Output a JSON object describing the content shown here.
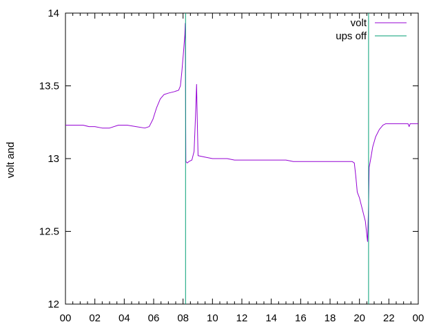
{
  "chart_data": {
    "type": "line",
    "title": "",
    "xlabel": "",
    "ylabel": "volt and",
    "xlim": [
      0,
      24
    ],
    "ylim": [
      12,
      14
    ],
    "x_ticks": [
      "00",
      "02",
      "04",
      "06",
      "08",
      "10",
      "12",
      "14",
      "16",
      "18",
      "20",
      "22",
      "00"
    ],
    "x_tick_values": [
      0,
      2,
      4,
      6,
      8,
      10,
      12,
      14,
      16,
      18,
      20,
      22,
      24
    ],
    "y_ticks": [
      "12",
      "12.5",
      "13",
      "13.5",
      "14"
    ],
    "y_tick_values": [
      12,
      12.5,
      13,
      13.5,
      14
    ],
    "grid": false,
    "legend_position": "top-right",
    "series": [
      {
        "name": "volt",
        "color": "#9400d3",
        "points": [
          [
            0.0,
            13.23
          ],
          [
            0.6,
            13.23
          ],
          [
            1.2,
            13.23
          ],
          [
            1.6,
            13.22
          ],
          [
            2.0,
            13.22
          ],
          [
            2.5,
            13.21
          ],
          [
            3.0,
            13.21
          ],
          [
            3.6,
            13.23
          ],
          [
            4.2,
            13.23
          ],
          [
            4.8,
            13.22
          ],
          [
            5.4,
            13.21
          ],
          [
            5.7,
            13.22
          ],
          [
            5.95,
            13.27
          ],
          [
            6.2,
            13.35
          ],
          [
            6.45,
            13.41
          ],
          [
            6.7,
            13.44
          ],
          [
            7.0,
            13.45
          ],
          [
            7.4,
            13.46
          ],
          [
            7.7,
            13.47
          ],
          [
            7.82,
            13.5
          ],
          [
            7.92,
            13.6
          ],
          [
            8.02,
            13.72
          ],
          [
            8.12,
            13.85
          ],
          [
            8.15,
            13.93
          ],
          [
            8.17,
            13.49
          ],
          [
            8.19,
            12.98
          ],
          [
            8.28,
            12.97
          ],
          [
            8.4,
            12.98
          ],
          [
            8.6,
            12.99
          ],
          [
            8.75,
            13.05
          ],
          [
            8.85,
            13.3
          ],
          [
            8.92,
            13.51
          ],
          [
            8.97,
            13.25
          ],
          [
            9.02,
            13.02
          ],
          [
            9.5,
            13.01
          ],
          [
            10.0,
            13.0
          ],
          [
            10.5,
            13.0
          ],
          [
            11.0,
            13.0
          ],
          [
            11.5,
            12.99
          ],
          [
            12.0,
            12.99
          ],
          [
            12.5,
            12.99
          ],
          [
            13.0,
            12.99
          ],
          [
            13.5,
            12.99
          ],
          [
            14.0,
            12.99
          ],
          [
            14.5,
            12.99
          ],
          [
            15.0,
            12.99
          ],
          [
            15.5,
            12.98
          ],
          [
            16.0,
            12.98
          ],
          [
            16.5,
            12.98
          ],
          [
            17.0,
            12.98
          ],
          [
            17.5,
            12.98
          ],
          [
            18.0,
            12.98
          ],
          [
            18.5,
            12.98
          ],
          [
            19.0,
            12.98
          ],
          [
            19.5,
            12.98
          ],
          [
            19.65,
            12.97
          ],
          [
            19.75,
            12.88
          ],
          [
            19.85,
            12.77
          ],
          [
            20.0,
            12.73
          ],
          [
            20.2,
            12.65
          ],
          [
            20.4,
            12.57
          ],
          [
            20.55,
            12.43
          ],
          [
            20.62,
            12.67
          ],
          [
            20.66,
            12.94
          ],
          [
            20.75,
            12.99
          ],
          [
            20.9,
            13.08
          ],
          [
            21.1,
            13.15
          ],
          [
            21.35,
            13.2
          ],
          [
            21.6,
            13.23
          ],
          [
            21.8,
            13.24
          ],
          [
            22.0,
            13.24
          ],
          [
            22.5,
            13.24
          ],
          [
            23.0,
            13.24
          ],
          [
            23.3,
            13.24
          ],
          [
            23.38,
            13.22
          ],
          [
            23.45,
            13.24
          ],
          [
            24.0,
            13.24
          ]
        ]
      },
      {
        "name": "ups off",
        "color": "#009e73",
        "type": "vertical-lines",
        "x_values": [
          8.17,
          20.62
        ]
      }
    ]
  }
}
